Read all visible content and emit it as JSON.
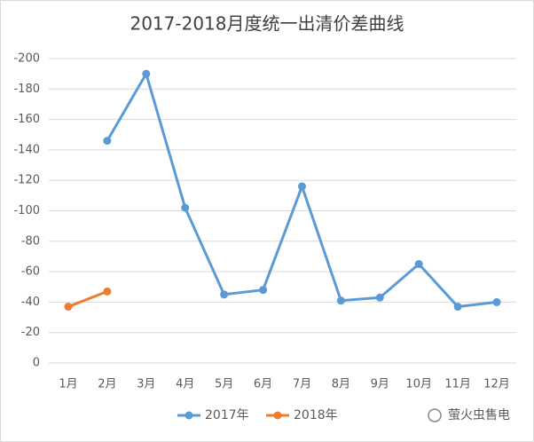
{
  "chart_data": {
    "type": "line",
    "title": "2017-2018月度统一出清价差曲线",
    "categories": [
      "1月",
      "2月",
      "3月",
      "4月",
      "5月",
      "6月",
      "7月",
      "8月",
      "9月",
      "10月",
      "11月",
      "12月"
    ],
    "series": [
      {
        "name": "2017年",
        "color": "#5b9bd5",
        "values": [
          null,
          -146,
          -190,
          -102,
          -45,
          -48,
          -116,
          -41,
          -43,
          -65,
          -37,
          -40
        ]
      },
      {
        "name": "2018年",
        "color": "#ed7d31",
        "values": [
          -37,
          -47,
          null,
          null,
          null,
          null,
          null,
          null,
          null,
          null,
          null,
          null
        ]
      }
    ],
    "ylim": [
      0,
      -200
    ],
    "yticks": [
      0,
      -20,
      -40,
      -60,
      -80,
      -100,
      -120,
      -140,
      -160,
      -180,
      -200
    ],
    "grid": true,
    "legend": "bottom",
    "watermark": "萤火虫售电"
  }
}
